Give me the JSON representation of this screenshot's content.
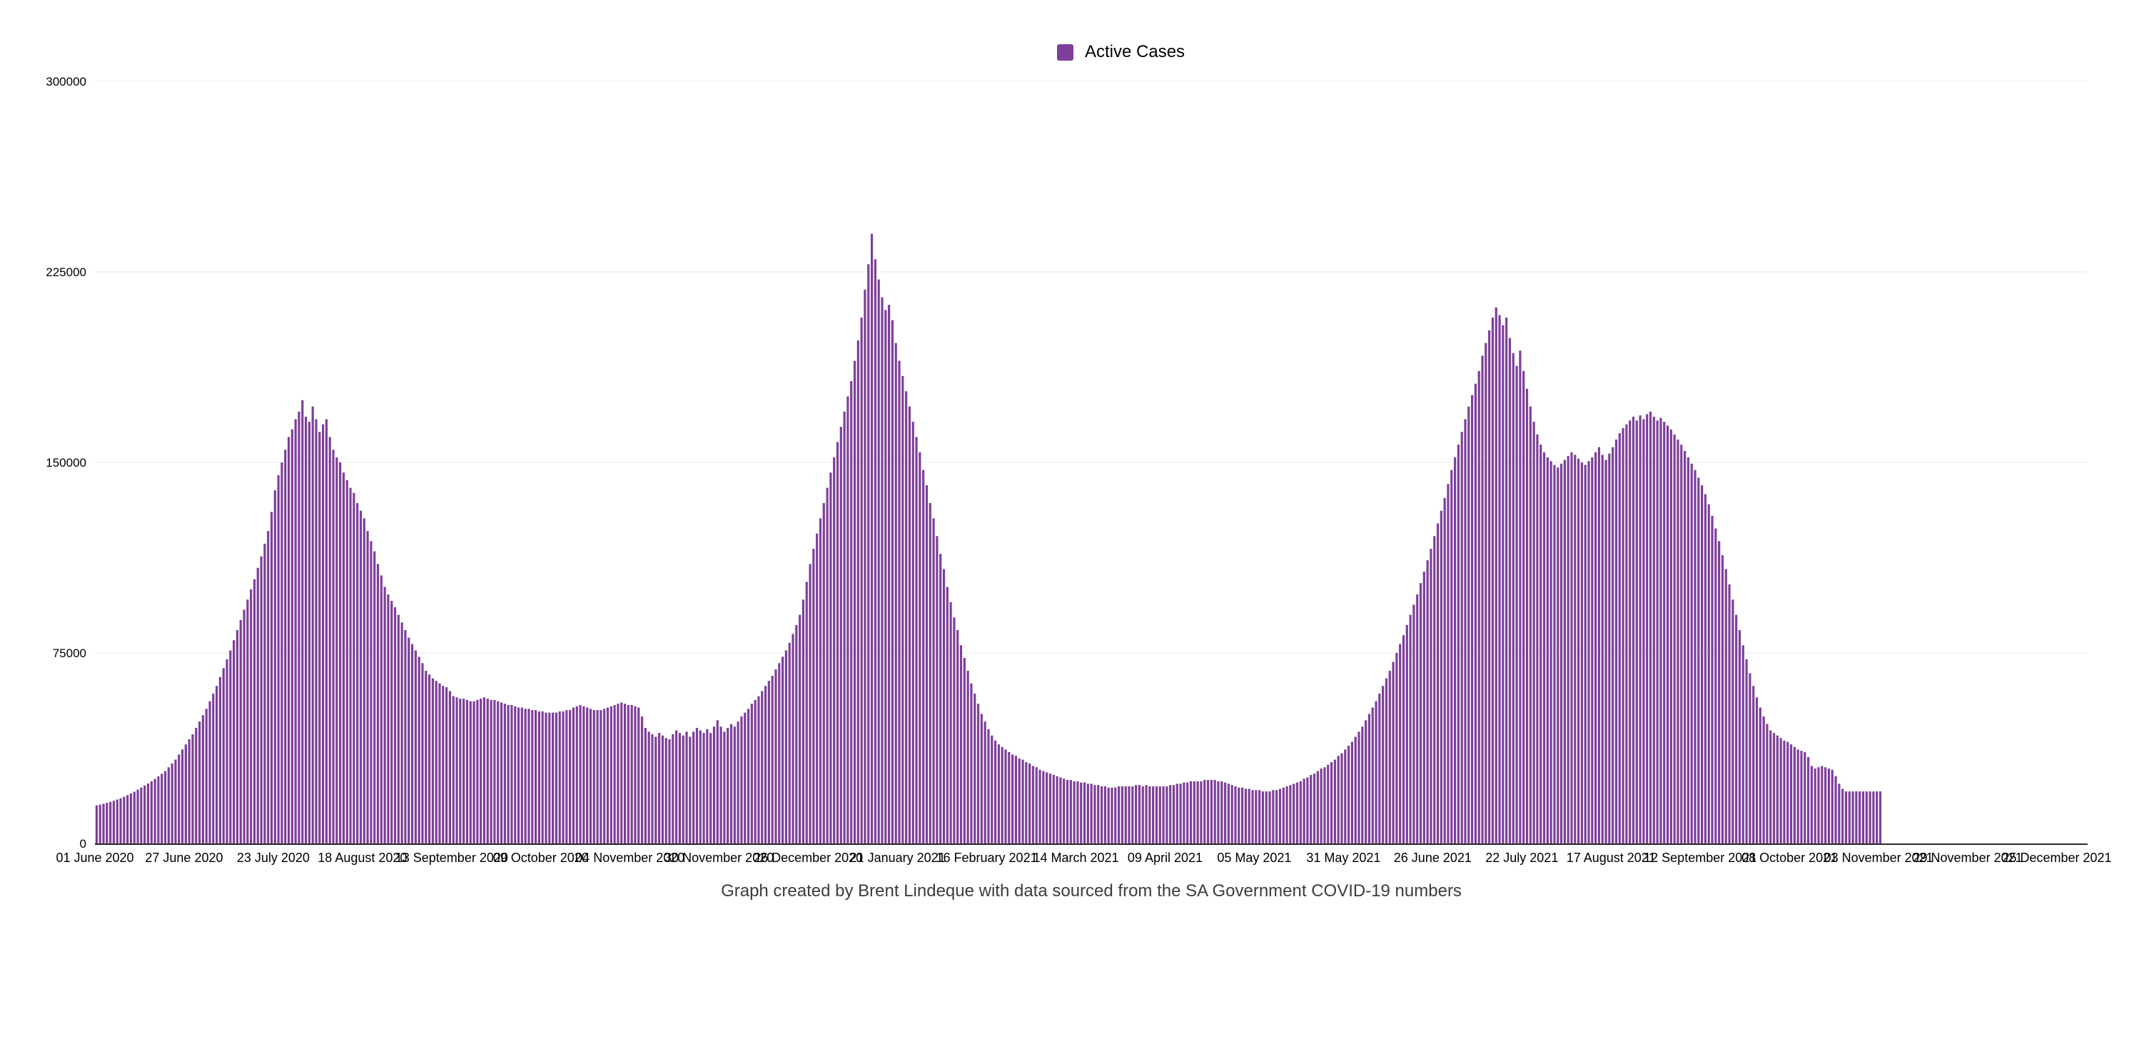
{
  "legend": {
    "label": "Active Cases",
    "color": "#7D3F9A"
  },
  "caption": "Graph created by Brent Lindeque with data sourced from the SA Government COVID-19 numbers",
  "chart_data": {
    "type": "bar",
    "title": "",
    "legend_entries": [
      "Active Cases"
    ],
    "bar_color": "#7D3F9A",
    "grid_color": "#E8E8E8",
    "axis_line_color": "#2B2B2B",
    "text_color": "#000000",
    "grid": true,
    "legend_position": "top-center",
    "ylim": [
      0,
      300000
    ],
    "y_ticks": [
      0,
      75000,
      150000,
      225000,
      300000
    ],
    "y_tick_labels": [
      "0",
      "75000",
      "150000",
      "225000",
      "300000"
    ],
    "x_tick_interval_days": 26,
    "x_tick_labels": [
      "01 June 2020",
      "27 June 2020",
      "23 July 2020",
      "18 August 2020",
      "13 September 2020",
      "09 October 2020",
      "04 November 2020",
      "30 November 2020",
      "26 December 2020",
      "21 January 2021",
      "16 February 2021",
      "14 March 2021",
      "09 April 2021",
      "05 May 2021",
      "31 May 2021",
      "26 June 2021",
      "22 July 2021",
      "17 August 2021",
      "12 September 2021",
      "08 October 2021",
      "03 November 2021",
      "29 November 2021",
      "25 December 2021"
    ],
    "values_start_date": "01 June 2020",
    "values_frequency": "daily",
    "values_end_date": "03 November 2021",
    "values": [
      15000,
      15300,
      15600,
      16000,
      16400,
      16800,
      17300,
      17800,
      18400,
      19000,
      19700,
      20400,
      21200,
      22000,
      22800,
      23600,
      24500,
      25400,
      26400,
      27400,
      28500,
      30000,
      31500,
      33000,
      35000,
      37000,
      39000,
      41000,
      43000,
      45500,
      48000,
      50500,
      53000,
      56000,
      59000,
      62000,
      65500,
      69000,
      72500,
      76000,
      80000,
      84000,
      88000,
      92000,
      96000,
      100000,
      104000,
      108500,
      113000,
      118000,
      123000,
      130500,
      139000,
      145000,
      150000,
      155000,
      160000,
      163000,
      167000,
      170000,
      174500,
      168000,
      166000,
      172000,
      167000,
      162000,
      165000,
      167000,
      160000,
      155000,
      152000,
      150000,
      146000,
      143000,
      140000,
      138000,
      134000,
      131000,
      128000,
      123000,
      119000,
      115000,
      110000,
      105500,
      101000,
      98000,
      95500,
      93000,
      90000,
      87000,
      84000,
      81000,
      78500,
      76000,
      73500,
      71000,
      68000,
      66500,
      65000,
      64000,
      63000,
      62000,
      61500,
      60000,
      58000,
      57500,
      57000,
      57000,
      56500,
      56000,
      56000,
      56500,
      57000,
      57500,
      57000,
      56500,
      56500,
      56000,
      55500,
      55000,
      54500,
      54500,
      54000,
      53500,
      53500,
      53000,
      53000,
      52500,
      52500,
      52000,
      52000,
      51500,
      51500,
      51500,
      51500,
      52000,
      52000,
      52500,
      52500,
      53500,
      54000,
      54500,
      54000,
      53500,
      53000,
      52500,
      52500,
      52500,
      53000,
      53500,
      54000,
      54500,
      55000,
      55500,
      55000,
      54500,
      54500,
      54000,
      53500,
      50000,
      45500,
      44000,
      43000,
      42000,
      43500,
      42500,
      41500,
      41000,
      43000,
      44500,
      43500,
      42500,
      44000,
      42000,
      44000,
      45500,
      44500,
      43500,
      45000,
      43500,
      46000,
      48500,
      46000,
      44000,
      45500,
      47000,
      46000,
      48000,
      50000,
      51500,
      53000,
      55000,
      56500,
      58000,
      60000,
      62000,
      64000,
      66000,
      68500,
      71000,
      73500,
      76000,
      79000,
      82500,
      86000,
      90000,
      96000,
      103000,
      110000,
      116000,
      122000,
      128000,
      134000,
      140000,
      146000,
      152000,
      158000,
      164000,
      170000,
      176000,
      182000,
      190000,
      198000,
      207000,
      218000,
      228000,
      240000,
      230000,
      222000,
      215000,
      210000,
      212000,
      206000,
      197000,
      190000,
      184000,
      178000,
      172000,
      166000,
      160000,
      154000,
      147000,
      141000,
      134000,
      128000,
      121000,
      114000,
      108000,
      101000,
      95000,
      89000,
      84000,
      78000,
      73000,
      68000,
      63000,
      59000,
      55000,
      51000,
      48000,
      45000,
      42500,
      40500,
      39000,
      38000,
      37000,
      36000,
      35000,
      34500,
      33500,
      33000,
      32000,
      31500,
      30500,
      30000,
      29000,
      28500,
      28000,
      27500,
      27000,
      26500,
      26000,
      25500,
      25000,
      25000,
      24500,
      24500,
      24000,
      24000,
      23500,
      23500,
      23000,
      23000,
      22500,
      22500,
      22000,
      22000,
      22000,
      22500,
      22500,
      22500,
      22500,
      22500,
      23000,
      23000,
      22500,
      23000,
      22500,
      22500,
      22500,
      22500,
      22500,
      22500,
      23000,
      23000,
      23500,
      23500,
      24000,
      24000,
      24500,
      24500,
      24500,
      24500,
      25000,
      25000,
      25000,
      25000,
      24500,
      24500,
      24000,
      23500,
      23000,
      22500,
      22000,
      22000,
      21500,
      21500,
      21000,
      21000,
      21000,
      20500,
      20500,
      20500,
      21000,
      21000,
      21500,
      22000,
      22500,
      23000,
      23500,
      24000,
      24500,
      25500,
      26000,
      27000,
      27500,
      28500,
      29500,
      30000,
      31000,
      32000,
      33000,
      34500,
      35500,
      37000,
      38500,
      40000,
      42000,
      44000,
      46000,
      48500,
      51000,
      53500,
      56000,
      59000,
      62000,
      65000,
      68000,
      71500,
      75000,
      78500,
      82000,
      86000,
      90000,
      94000,
      98000,
      102500,
      107000,
      111500,
      116000,
      121000,
      126000,
      131000,
      136000,
      141500,
      147000,
      152000,
      157000,
      162000,
      167000,
      172000,
      176500,
      181000,
      186000,
      192000,
      197000,
      202000,
      207000,
      211000,
      208000,
      204000,
      207000,
      199000,
      193000,
      188000,
      194000,
      186000,
      179000,
      172000,
      166000,
      161000,
      157000,
      154000,
      152000,
      150500,
      149000,
      148000,
      149500,
      151000,
      152500,
      154000,
      153000,
      151500,
      150000,
      149000,
      150500,
      152000,
      154000,
      156000,
      153000,
      151000,
      153500,
      156000,
      159000,
      161500,
      163500,
      165000,
      166500,
      168000,
      166500,
      168500,
      167000,
      169000,
      170000,
      168000,
      166500,
      167500,
      166000,
      164500,
      163000,
      161000,
      159000,
      157000,
      154500,
      152000,
      149500,
      147000,
      144000,
      141000,
      137500,
      133500,
      129000,
      124000,
      119000,
      113500,
      108000,
      102000,
      96000,
      90000,
      84000,
      78000,
      72500,
      67000,
      62000,
      57500,
      53500,
      50000,
      47000,
      44500,
      43500,
      42500,
      41500,
      40500,
      40000,
      39000,
      38000,
      37000,
      36500,
      36000,
      34000,
      30500,
      29500,
      30000,
      30500,
      30000,
      29500,
      29000,
      26500,
      23500,
      21500,
      20500,
      20500,
      20500,
      20500,
      20500,
      20500,
      20500,
      20500,
      20500,
      20500,
      20500
    ]
  }
}
